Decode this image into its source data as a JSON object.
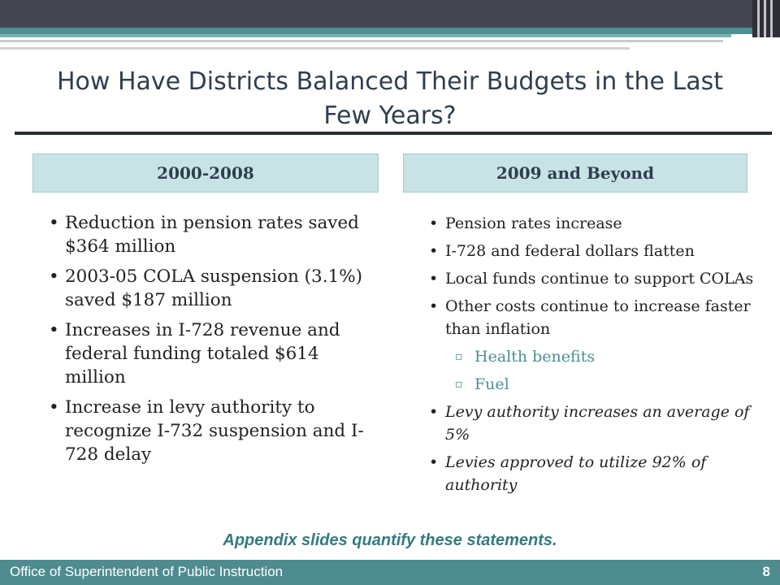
{
  "slide": {
    "title": "How Have Districts Balanced Their Budgets in the Last Few Years?",
    "left_column": {
      "heading": "2000-2008",
      "bullets": [
        "Reduction in pension rates saved $364 million",
        "2003-05 COLA suspension (3.1%) saved $187 million",
        "Increases in I-728 revenue and federal funding totaled $614 million",
        "Increase in levy authority to recognize I-732 suspension and I-728 delay"
      ]
    },
    "right_column": {
      "heading": "2009 and Beyond",
      "bullets": [
        "Pension rates increase",
        "I-728 and federal dollars flatten",
        "Local funds continue to support COLAs",
        "Other costs continue to increase faster than inflation"
      ],
      "sub_bullets": [
        "Health benefits",
        "Fuel"
      ],
      "italic_bullets": [
        "Levy authority increases an average of 5%",
        "Levies approved to utilize 92% of authority"
      ]
    },
    "note": "Appendix slides quantify these statements.",
    "colors": {
      "accent_teal": "#4e8c90",
      "heading_fill": "#c8e3e6",
      "dark_bar": "#454552"
    }
  },
  "footer": {
    "organization": "Office of Superintendent of Public Instruction",
    "page_number": "8"
  }
}
